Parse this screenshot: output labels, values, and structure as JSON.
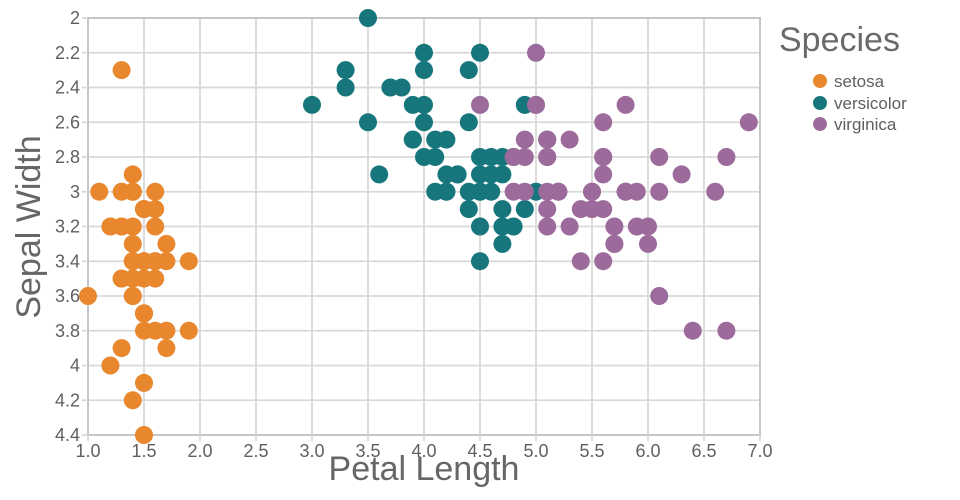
{
  "chart_data": {
    "type": "scatter",
    "title": "",
    "xlabel": "Petal Length",
    "ylabel": "Sepal Width",
    "legend_title": "Species",
    "legend_position": "right",
    "grid": true,
    "xlim": [
      1.0,
      7.0
    ],
    "ylim": [
      2.0,
      4.4
    ],
    "y_reversed": true,
    "x_ticks": [
      "1.0",
      "1.5",
      "2.0",
      "2.5",
      "3.0",
      "3.5",
      "4.0",
      "4.5",
      "5.0",
      "5.5",
      "6.0",
      "6.5",
      "7.0"
    ],
    "y_ticks": [
      "2",
      "2.2",
      "2.4",
      "2.6",
      "2.8",
      "3",
      "3.2",
      "3.4",
      "3.6",
      "3.8",
      "4",
      "4.2",
      "4.4"
    ],
    "colors": {
      "grid": "#d9d9d9",
      "panel_border": "#c6c6c6",
      "tick_text": "#5f5f5f",
      "axis_title_text": "#666666"
    },
    "series": [
      {
        "name": "setosa",
        "color": "#E8872D",
        "points": [
          [
            1.4,
            3.5
          ],
          [
            1.4,
            3.0
          ],
          [
            1.3,
            3.2
          ],
          [
            1.5,
            3.1
          ],
          [
            1.4,
            3.6
          ],
          [
            1.7,
            3.9
          ],
          [
            1.4,
            3.4
          ],
          [
            1.5,
            3.4
          ],
          [
            1.4,
            2.9
          ],
          [
            1.5,
            3.1
          ],
          [
            1.5,
            3.7
          ],
          [
            1.6,
            3.4
          ],
          [
            1.4,
            3.0
          ],
          [
            1.1,
            3.0
          ],
          [
            1.2,
            4.0
          ],
          [
            1.5,
            4.4
          ],
          [
            1.3,
            3.9
          ],
          [
            1.4,
            3.5
          ],
          [
            1.7,
            3.8
          ],
          [
            1.5,
            3.8
          ],
          [
            1.7,
            3.4
          ],
          [
            1.5,
            3.7
          ],
          [
            1.0,
            3.6
          ],
          [
            1.7,
            3.3
          ],
          [
            1.9,
            3.4
          ],
          [
            1.6,
            3.0
          ],
          [
            1.6,
            3.4
          ],
          [
            1.5,
            3.5
          ],
          [
            1.4,
            3.4
          ],
          [
            1.6,
            3.2
          ],
          [
            1.6,
            3.1
          ],
          [
            1.5,
            3.4
          ],
          [
            1.5,
            4.1
          ],
          [
            1.4,
            4.2
          ],
          [
            1.5,
            3.1
          ],
          [
            1.2,
            3.2
          ],
          [
            1.3,
            3.5
          ],
          [
            1.4,
            3.6
          ],
          [
            1.3,
            3.0
          ],
          [
            1.5,
            3.4
          ],
          [
            1.3,
            3.5
          ],
          [
            1.3,
            2.3
          ],
          [
            1.3,
            3.2
          ],
          [
            1.6,
            3.5
          ],
          [
            1.9,
            3.8
          ],
          [
            1.4,
            3.0
          ],
          [
            1.6,
            3.8
          ],
          [
            1.4,
            3.2
          ],
          [
            1.5,
            3.7
          ],
          [
            1.4,
            3.3
          ]
        ]
      },
      {
        "name": "versicolor",
        "color": "#17767C",
        "points": [
          [
            4.7,
            3.2
          ],
          [
            4.5,
            3.2
          ],
          [
            4.9,
            3.1
          ],
          [
            4.0,
            2.3
          ],
          [
            4.6,
            2.8
          ],
          [
            4.5,
            2.8
          ],
          [
            4.7,
            3.3
          ],
          [
            3.3,
            2.4
          ],
          [
            4.6,
            2.9
          ],
          [
            3.9,
            2.7
          ],
          [
            3.5,
            2.0
          ],
          [
            4.2,
            3.0
          ],
          [
            4.0,
            2.2
          ],
          [
            4.7,
            2.9
          ],
          [
            3.6,
            2.9
          ],
          [
            4.4,
            3.1
          ],
          [
            4.5,
            3.0
          ],
          [
            4.1,
            2.7
          ],
          [
            4.5,
            2.2
          ],
          [
            3.9,
            2.5
          ],
          [
            4.8,
            3.2
          ],
          [
            4.0,
            2.8
          ],
          [
            4.9,
            2.5
          ],
          [
            4.7,
            2.8
          ],
          [
            4.3,
            2.9
          ],
          [
            4.4,
            3.0
          ],
          [
            4.8,
            2.8
          ],
          [
            5.0,
            3.0
          ],
          [
            4.5,
            2.9
          ],
          [
            3.5,
            2.6
          ],
          [
            3.8,
            2.4
          ],
          [
            3.7,
            2.4
          ],
          [
            3.9,
            2.7
          ],
          [
            5.1,
            2.7
          ],
          [
            4.5,
            3.0
          ],
          [
            4.5,
            3.4
          ],
          [
            4.7,
            3.1
          ],
          [
            4.4,
            2.3
          ],
          [
            4.1,
            3.0
          ],
          [
            4.0,
            2.5
          ],
          [
            4.4,
            2.6
          ],
          [
            4.6,
            3.0
          ],
          [
            4.0,
            2.6
          ],
          [
            3.3,
            2.3
          ],
          [
            4.2,
            2.7
          ],
          [
            4.2,
            3.0
          ],
          [
            4.2,
            2.9
          ],
          [
            4.3,
            2.9
          ],
          [
            3.0,
            2.5
          ],
          [
            4.1,
            2.8
          ]
        ]
      },
      {
        "name": "virginica",
        "color": "#9C6B9C",
        "points": [
          [
            6.0,
            3.3
          ],
          [
            5.1,
            2.7
          ],
          [
            5.9,
            3.0
          ],
          [
            5.6,
            2.9
          ],
          [
            5.8,
            3.0
          ],
          [
            6.6,
            3.0
          ],
          [
            4.5,
            2.5
          ],
          [
            6.3,
            2.9
          ],
          [
            5.8,
            2.5
          ],
          [
            6.1,
            3.6
          ],
          [
            5.1,
            3.2
          ],
          [
            5.3,
            2.7
          ],
          [
            5.5,
            3.0
          ],
          [
            5.0,
            2.5
          ],
          [
            5.1,
            2.8
          ],
          [
            5.3,
            3.2
          ],
          [
            5.5,
            3.0
          ],
          [
            6.7,
            3.8
          ],
          [
            6.9,
            2.6
          ],
          [
            5.0,
            2.2
          ],
          [
            5.7,
            3.2
          ],
          [
            4.9,
            2.8
          ],
          [
            6.7,
            2.8
          ],
          [
            4.9,
            2.7
          ],
          [
            5.7,
            3.3
          ],
          [
            6.0,
            3.2
          ],
          [
            4.8,
            2.8
          ],
          [
            4.9,
            3.0
          ],
          [
            5.6,
            2.8
          ],
          [
            5.8,
            3.0
          ],
          [
            6.1,
            2.8
          ],
          [
            6.4,
            3.8
          ],
          [
            5.6,
            2.8
          ],
          [
            5.1,
            2.8
          ],
          [
            5.6,
            2.6
          ],
          [
            6.1,
            3.0
          ],
          [
            5.6,
            3.4
          ],
          [
            5.5,
            3.1
          ],
          [
            4.8,
            3.0
          ],
          [
            5.4,
            3.1
          ],
          [
            5.6,
            3.1
          ],
          [
            5.1,
            3.1
          ],
          [
            5.1,
            2.7
          ],
          [
            5.9,
            3.2
          ],
          [
            5.7,
            3.3
          ],
          [
            5.2,
            3.0
          ],
          [
            5.0,
            2.5
          ],
          [
            5.2,
            3.0
          ],
          [
            5.4,
            3.4
          ],
          [
            5.1,
            3.0
          ]
        ]
      }
    ]
  }
}
